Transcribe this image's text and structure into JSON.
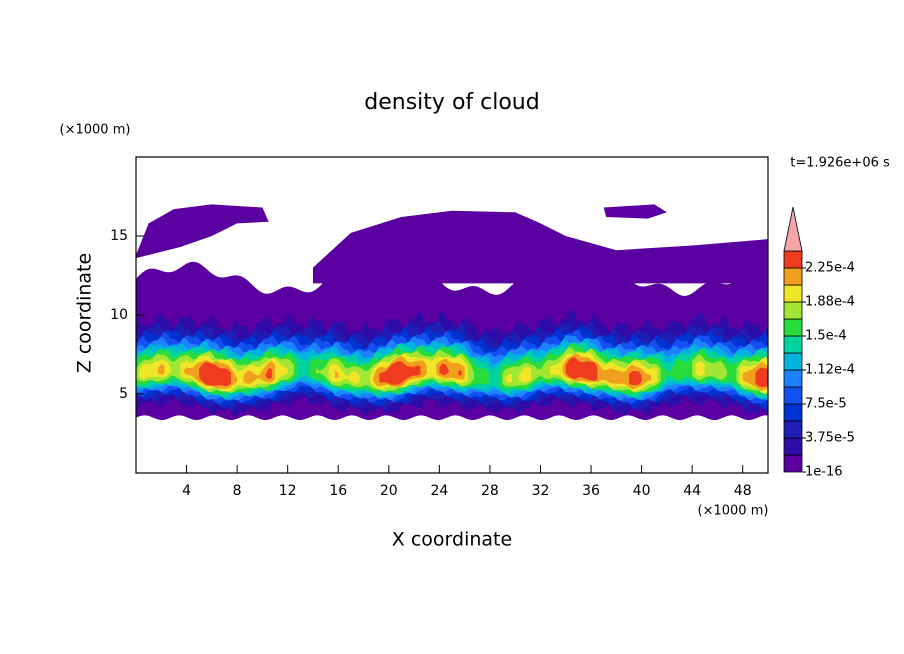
{
  "chart_data": {
    "type": "contour",
    "title": "density of cloud",
    "x_label": "X coordinate",
    "y_label": "Z coordinate",
    "x_unit": "(×1000 m)",
    "y_unit": "(×1000 m)",
    "annotation": "t=1.926e+06 s",
    "xlim": [
      0,
      50
    ],
    "xticks": [
      4,
      8,
      12,
      16,
      20,
      24,
      28,
      32,
      36,
      40,
      44,
      48
    ],
    "ylim": [
      0,
      20
    ],
    "yticks": [
      5,
      10,
      15
    ],
    "levels": [
      1e-16,
      1.875e-05,
      3.75e-05,
      5.625e-05,
      7.5e-05,
      9.375e-05,
      0.0001125,
      0.00013125,
      0.00015,
      0.00016875,
      0.0001875,
      0.00020625,
      0.000225,
      0.00024375
    ],
    "colors": [
      "#5a00a0",
      "#2d0ca8",
      "#1e1eb4",
      "#0032d2",
      "#1450f0",
      "#1e82ff",
      "#00b4dc",
      "#00d2a0",
      "#28dc3c",
      "#a0e632",
      "#f0e628",
      "#f0a01e",
      "#f03c1e"
    ],
    "extend_color": "#f4a6a6",
    "colorbar_ticks": [
      {
        "value": 1e-16,
        "label": "1e-16"
      },
      {
        "value": 3.75e-05,
        "label": "3.75e-5"
      },
      {
        "value": 7.5e-05,
        "label": "7.5e-5"
      },
      {
        "value": 0.0001125,
        "label": "1.12e-4"
      },
      {
        "value": 0.00015,
        "label": "1.5e-4"
      },
      {
        "value": 0.0001875,
        "label": "1.88e-4"
      },
      {
        "value": 0.000225,
        "label": "2.25e-4"
      }
    ]
  }
}
